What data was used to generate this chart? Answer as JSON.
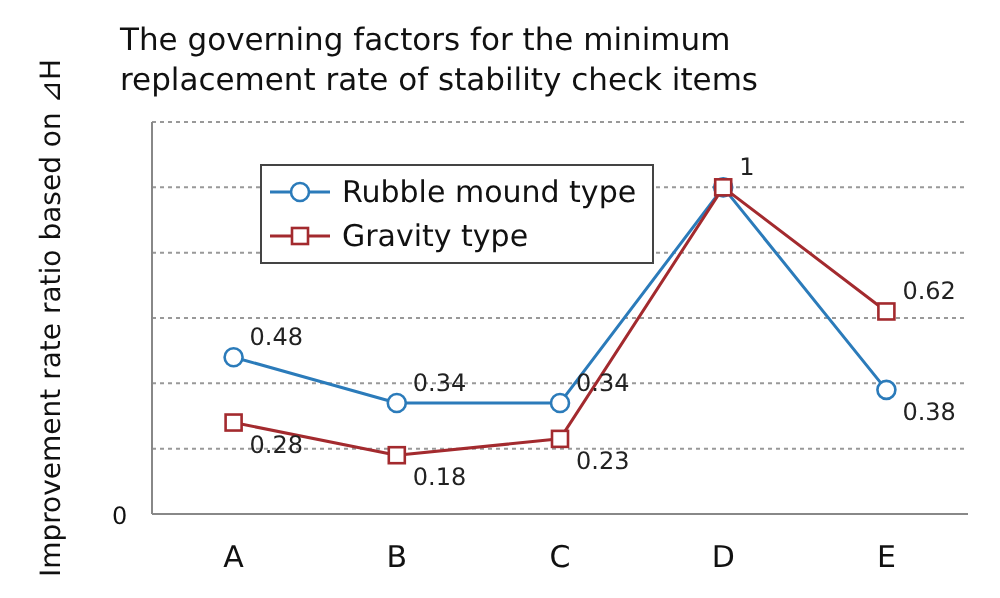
{
  "chart_data": {
    "type": "line",
    "title": "The governing factors for the minimum\nreplacement rate of stability check items",
    "ylabel": "Improvement rate ratio based on ⊿H",
    "categories": [
      "A",
      "B",
      "C",
      "D",
      "E"
    ],
    "series": [
      {
        "name": "Rubble mound type",
        "color": "#2b7bba",
        "marker": "circle",
        "values": [
          0.48,
          0.34,
          0.34,
          1,
          0.38
        ],
        "value_labels": [
          "0.48",
          "0.34",
          "0.34",
          "1",
          "0.38"
        ]
      },
      {
        "name": "Gravity type",
        "color": "#a32a2e",
        "marker": "square",
        "values": [
          0.28,
          0.18,
          0.23,
          1,
          0.62
        ],
        "value_labels": [
          "0.28",
          "0.18",
          "0.23",
          null,
          "0.62"
        ]
      }
    ],
    "ylim": [
      0,
      1.2
    ],
    "annotations": [
      "0"
    ],
    "yticks": [
      {
        "value": 0,
        "label": null
      },
      {
        "value": 0.2,
        "label": null
      },
      {
        "value": 0.4,
        "label": null
      },
      {
        "value": 0.6,
        "label": null
      },
      {
        "value": 0.8,
        "label": null
      },
      {
        "value": 1,
        "label": null
      }
    ],
    "grid": "y",
    "legend": "top left",
    "line_style": "solid"
  }
}
